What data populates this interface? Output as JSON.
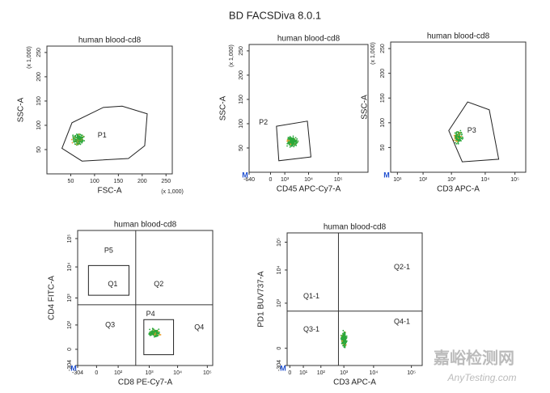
{
  "title": "BD FACSDiva 8.0.1",
  "marker": "M",
  "plots": [
    {
      "title": "human blood-cd8",
      "x_label": "FSC-A",
      "y_label": "SSC-A",
      "x_ticks": [
        "50",
        "100",
        "150",
        "200",
        "250"
      ],
      "y_ticks": [
        "50",
        "100",
        "150",
        "200",
        "250"
      ],
      "x_scale": "(x 1,000)",
      "y_scale": "(x 1,000)",
      "gates": [
        "P1"
      ]
    },
    {
      "title": "human blood-cd8",
      "x_label": "CD45 APC-Cy7-A",
      "y_label": "SSC-A",
      "x_ticks": [
        "-640",
        "0",
        "10³",
        "10⁴",
        "10⁵"
      ],
      "y_ticks": [
        "50",
        "100",
        "150",
        "200",
        "250"
      ],
      "y_scale": "(x 1,000)",
      "gates": [
        "P2"
      ]
    },
    {
      "title": "human blood-cd8",
      "x_label": "CD3 APC-A",
      "y_label": "SSC-A",
      "x_ticks": [
        "10¹",
        "10²",
        "10³",
        "10⁴",
        "10⁵"
      ],
      "y_ticks": [
        "50",
        "100",
        "150",
        "200",
        "250"
      ],
      "y_scale": "(x 1,000)",
      "gates": [
        "P3"
      ]
    },
    {
      "title": "human blood-cd8",
      "x_label": "CD8 PE-Cy7-A",
      "y_label": "CD4 FITC-A",
      "x_ticks": [
        "-304",
        "0",
        "10²",
        "10³",
        "10⁴",
        "10⁵"
      ],
      "y_ticks": [
        "-304",
        "0",
        "10²",
        "10³",
        "10⁴",
        "10⁵"
      ],
      "gates": [
        "P5",
        "Q1",
        "Q2",
        "P4",
        "Q3",
        "Q4"
      ]
    },
    {
      "title": "human blood-cd8",
      "x_label": "CD3 APC-A",
      "y_label": "PD1 BUV737-A",
      "x_ticks": [
        "0",
        "10¹",
        "10²",
        "10³",
        "10⁴",
        "10⁵"
      ],
      "y_ticks": [
        "-304",
        "0",
        "10³",
        "10⁴",
        "10⁵"
      ],
      "gates": [
        "Q1-1",
        "Q2-1",
        "Q3-1",
        "Q4-1"
      ]
    }
  ],
  "watermark": {
    "name": "嘉峪检测网",
    "site": "AnyTesting.com"
  }
}
